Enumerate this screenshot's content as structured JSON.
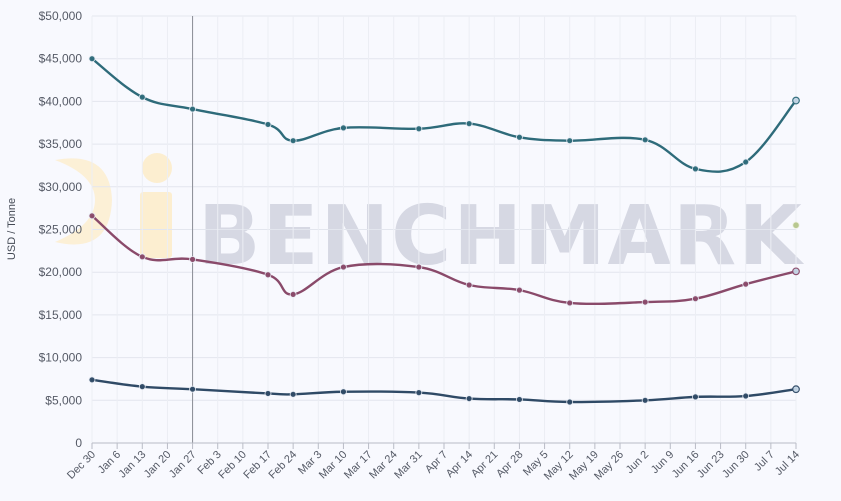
{
  "watermark": {
    "text": "BENCHMARK"
  },
  "chart_data": {
    "type": "line",
    "ylabel": "USD / Tonne",
    "ylim": [
      0,
      50000
    ],
    "yticks": [
      0,
      5000,
      10000,
      15000,
      20000,
      25000,
      30000,
      35000,
      40000,
      45000,
      50000
    ],
    "ytick_labels": [
      "0",
      "$5,000",
      "$10,000",
      "$15,000",
      "$20,000",
      "$25,000",
      "$30,000",
      "$35,000",
      "$40,000",
      "$45,000",
      "$50,000"
    ],
    "categories": [
      "Dec 30",
      "Jan 6",
      "Jan 13",
      "Jan 20",
      "Jan 27",
      "Feb 3",
      "Feb 10",
      "Feb 17",
      "Feb 24",
      "Mar 3",
      "Mar 10",
      "Mar 17",
      "Mar 24",
      "Mar 31",
      "Apr 7",
      "Apr 14",
      "Apr 21",
      "Apr 28",
      "May 5",
      "May 12",
      "May 19",
      "May 26",
      "Jun 2",
      "Jun 9",
      "Jun 16",
      "Jun 23",
      "Jun 30",
      "Jul 7",
      "Jul 14"
    ],
    "grid": true,
    "crosshair_category": "Jan 27",
    "series": [
      {
        "color": "#2e6b7a",
        "points": [
          [
            "Dec 30",
            45000
          ],
          [
            "Jan 13",
            40500
          ],
          [
            "Jan 27",
            39100
          ],
          [
            "Feb 17",
            37300
          ],
          [
            "Feb 24",
            35400
          ],
          [
            "Mar 10",
            36900
          ],
          [
            "Mar 31",
            36800
          ],
          [
            "Apr 14",
            37400
          ],
          [
            "Apr 28",
            35800
          ],
          [
            "May 12",
            35400
          ],
          [
            "Jun 2",
            35500
          ],
          [
            "Jun 16",
            32100
          ],
          [
            "Jun 30",
            32900
          ],
          [
            "Jul 14",
            40100
          ]
        ]
      },
      {
        "color": "#8a4a6a",
        "points": [
          [
            "Dec 30",
            26600
          ],
          [
            "Jan 13",
            21800
          ],
          [
            "Jan 27",
            21500
          ],
          [
            "Feb 17",
            19700
          ],
          [
            "Feb 24",
            17400
          ],
          [
            "Mar 10",
            20600
          ],
          [
            "Mar 31",
            20600
          ],
          [
            "Apr 14",
            18500
          ],
          [
            "Apr 28",
            17900
          ],
          [
            "May 12",
            16400
          ],
          [
            "Jun 2",
            16500
          ],
          [
            "Jun 16",
            16900
          ],
          [
            "Jun 30",
            18600
          ],
          [
            "Jul 14",
            20100
          ]
        ]
      },
      {
        "color": "#2f4a66",
        "points": [
          [
            "Dec 30",
            7400
          ],
          [
            "Jan 13",
            6600
          ],
          [
            "Jan 27",
            6300
          ],
          [
            "Feb 17",
            5800
          ],
          [
            "Feb 24",
            5700
          ],
          [
            "Mar 10",
            6000
          ],
          [
            "Mar 31",
            5900
          ],
          [
            "Apr 14",
            5200
          ],
          [
            "Apr 28",
            5100
          ],
          [
            "May 12",
            4800
          ],
          [
            "Jun 2",
            5000
          ],
          [
            "Jun 16",
            5400
          ],
          [
            "Jun 30",
            5500
          ],
          [
            "Jul 14",
            6300
          ]
        ]
      }
    ],
    "extra_points": [
      {
        "color": "#b8c890",
        "x": "Jul 14",
        "y": 25500
      }
    ]
  }
}
